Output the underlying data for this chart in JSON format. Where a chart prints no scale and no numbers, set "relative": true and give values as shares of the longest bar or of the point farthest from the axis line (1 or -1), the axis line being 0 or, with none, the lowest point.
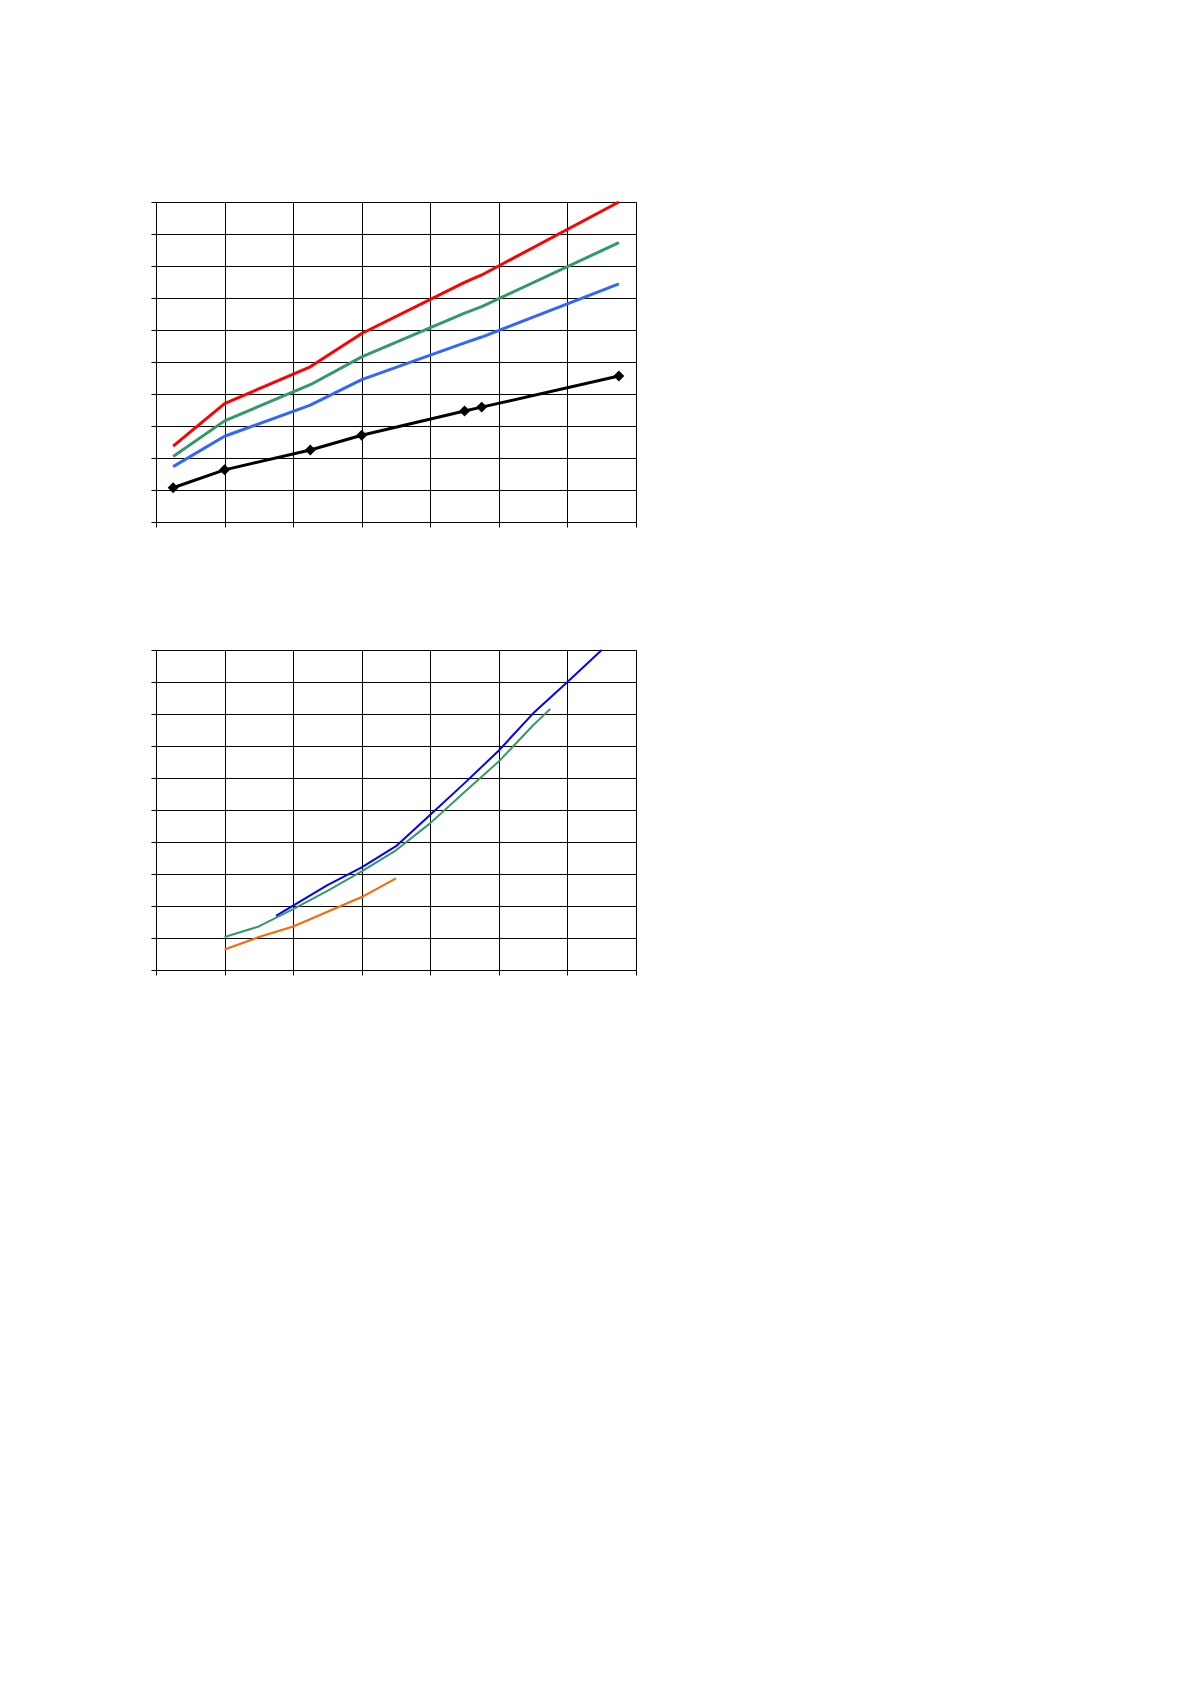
{
  "chart_data": [
    {
      "type": "line",
      "relative": true,
      "grid": true,
      "tick_labels": false,
      "categories": [
        null,
        null,
        null,
        null,
        null,
        null,
        null,
        null,
        null,
        null,
        null,
        null,
        null,
        null,
        null,
        null,
        null,
        null,
        null,
        null,
        null,
        null,
        null,
        null,
        null,
        null,
        null,
        null,
        null
      ],
      "series": [
        {
          "color": "#000000",
          "marker": "diamond",
          "values": [
            null,
            0.107,
            null,
            null,
            0.163,
            null,
            null,
            null,
            null,
            0.225,
            null,
            null,
            0.271,
            null,
            null,
            null,
            null,
            null,
            0.347,
            0.359,
            null,
            null,
            null,
            null,
            null,
            null,
            null,
            0.456,
            null
          ]
        },
        {
          "color": "#3366ff",
          "values": [
            null,
            0.173,
            null,
            null,
            0.268,
            null,
            null,
            null,
            null,
            0.365,
            null,
            null,
            0.445,
            null,
            null,
            null,
            null,
            null,
            0.56,
            0.578,
            null,
            null,
            null,
            null,
            null,
            null,
            null,
            0.744,
            null
          ]
        },
        {
          "color": "#339966",
          "values": [
            null,
            0.205,
            null,
            null,
            0.316,
            null,
            null,
            null,
            null,
            0.429,
            null,
            null,
            0.516,
            null,
            null,
            null,
            null,
            null,
            0.653,
            0.673,
            null,
            null,
            null,
            null,
            null,
            null,
            null,
            0.873,
            null
          ]
        },
        {
          "color": "#ff0000",
          "values": [
            null,
            0.237,
            null,
            null,
            0.37,
            null,
            null,
            null,
            null,
            0.485,
            null,
            null,
            0.589,
            null,
            null,
            null,
            null,
            null,
            0.749,
            0.772,
            null,
            null,
            null,
            null,
            null,
            null,
            null,
            1,
            null
          ]
        }
      ]
    },
    {
      "type": "line",
      "relative": true,
      "grid": true,
      "tick_labels": false,
      "categories": [
        null,
        null,
        null,
        null,
        null,
        null,
        null,
        null,
        null,
        null,
        null,
        null,
        null,
        null,
        null,
        null,
        null,
        null,
        null,
        null,
        null,
        null,
        null,
        null,
        null,
        null,
        null,
        null,
        null
      ],
      "series": [
        {
          "color": "#0000ff",
          "values": [
            null,
            null,
            null,
            null,
            null,
            null,
            null,
            0.169,
            0.201,
            null,
            0.265,
            null,
            0.321,
            null,
            0.387,
            null,
            0.485,
            null,
            0.584,
            null,
            0.686,
            null,
            0.802,
            null,
            0.9,
            null,
            1,
            null,
            null
          ]
        },
        {
          "color": "#339966",
          "values": [
            null,
            null,
            null,
            null,
            0.103,
            null,
            0.136,
            null,
            0.19,
            null,
            0.247,
            null,
            0.308,
            null,
            0.374,
            null,
            0.459,
            null,
            0.556,
            null,
            0.652,
            null,
            0.765,
            0.816,
            null,
            null,
            null,
            null,
            null
          ]
        },
        {
          "color": "#ff6600",
          "values": [
            null,
            null,
            null,
            null,
            0.064,
            null,
            0.103,
            null,
            0.136,
            null,
            0.182,
            null,
            0.228,
            null,
            0.286,
            null,
            null,
            null,
            null,
            null,
            null,
            null,
            null,
            null,
            null,
            null,
            null,
            null,
            null
          ]
        }
      ]
    }
  ]
}
